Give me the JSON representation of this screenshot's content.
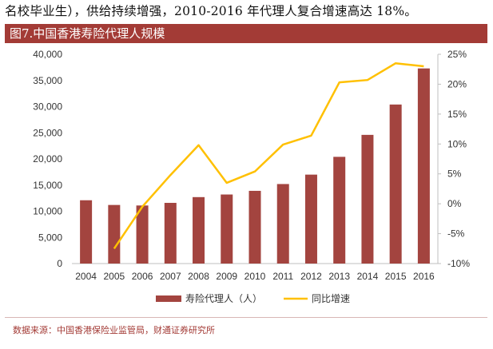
{
  "intro_text": "名校毕业生），供给持续增强，2010-2016 年代理人复合增速高达 18%。",
  "figure_title": "图7.中国香港寿险代理人规模",
  "source_text": "数据来源：中国香港保险业监管局，财通证券研究所",
  "colors": {
    "bar": "#a3443f",
    "line": "#ffc000",
    "title_bg": "#a33b36"
  },
  "chart_data": {
    "type": "bar",
    "categories": [
      "2004",
      "2005",
      "2006",
      "2007",
      "2008",
      "2009",
      "2010",
      "2011",
      "2012",
      "2013",
      "2014",
      "2015",
      "2016"
    ],
    "series": [
      {
        "name": "寿险代理人（人）",
        "type": "bar",
        "axis": "left",
        "values": [
          12100,
          11200,
          11100,
          11600,
          12700,
          13200,
          13900,
          15200,
          17000,
          20400,
          24600,
          30400,
          37300
        ]
      },
      {
        "name": "同比增速",
        "type": "line",
        "axis": "right",
        "values": [
          null,
          -7.5,
          -0.5,
          4.8,
          9.8,
          3.5,
          5.4,
          9.9,
          11.4,
          20.3,
          20.7,
          23.5,
          23.0
        ]
      }
    ],
    "left_axis": {
      "min": 0,
      "max": 40000,
      "ticks": [
        "0",
        "5,000",
        "10,000",
        "15,000",
        "20,000",
        "25,000",
        "30,000",
        "35,000",
        "40,000"
      ]
    },
    "right_axis": {
      "min": -10,
      "max": 25,
      "ticks": [
        "-10%",
        "-5%",
        "0%",
        "5%",
        "10%",
        "15%",
        "20%",
        "25%"
      ]
    },
    "legend": [
      "寿险代理人（人）",
      "同比增速"
    ]
  }
}
